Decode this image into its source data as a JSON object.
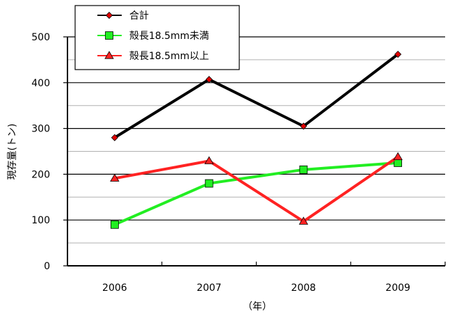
{
  "chart_data": {
    "type": "line",
    "x": [
      "2006",
      "2007",
      "2008",
      "2009"
    ],
    "xlabel": "（年）",
    "ylabel": "現存量(トン)",
    "ylim": [
      0,
      500
    ],
    "yticks": [
      "0",
      "100",
      "200",
      "300",
      "400",
      "500"
    ],
    "grid": true,
    "legend_position": "top-left",
    "series": [
      {
        "name": "合計",
        "values": [
          280,
          407,
          305,
          462
        ],
        "color": "#000000",
        "marker": "diamond",
        "marker_color": "#e00000"
      },
      {
        "name": "殻長18.5mm未満",
        "values": [
          90,
          180,
          210,
          225
        ],
        "color": "#22ee22",
        "marker": "square",
        "marker_color": "#22ee22"
      },
      {
        "name": "殻長18.5mm以上",
        "values": [
          191,
          229,
          97,
          238
        ],
        "color": "#ff2222",
        "marker": "triangle",
        "marker_color": "#ff2222"
      }
    ]
  }
}
